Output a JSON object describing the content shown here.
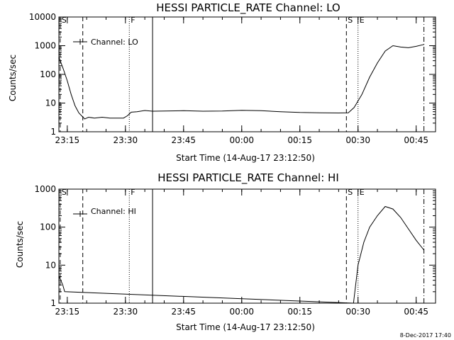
{
  "footer_stamp": "8-Dec-2017 17:40",
  "chart_data": [
    {
      "type": "line",
      "title": "HESSI PARTICLE_RATE Channel: LO",
      "xlabel": "Start Time (14-Aug-17 23:12:50)",
      "ylabel": "Counts/sec",
      "yscale": "log",
      "ylim": [
        1,
        10000
      ],
      "yticks": [
        1,
        10,
        100,
        1000,
        10000
      ],
      "ytick_labels": [
        "1",
        "10",
        "100",
        "1000",
        "10000"
      ],
      "xlim": [
        "23:12:50",
        "00:50:00"
      ],
      "xticks": [
        "23:15",
        "23:30",
        "23:45",
        "00:00",
        "00:15",
        "00:30",
        "00:45"
      ],
      "legend": {
        "label": "Channel: LO",
        "placement": "top-left"
      },
      "series": [
        {
          "name": "Channel: LO",
          "x": [
            "23:12:50",
            "23:14:00",
            "23:15:00",
            "23:16:00",
            "23:17:00",
            "23:18:00",
            "23:19:30",
            "23:20:30",
            "23:22:00",
            "23:24:00",
            "23:26:00",
            "23:28:00",
            "23:29:30",
            "23:30:30",
            "23:31:30",
            "23:33:00",
            "23:35:00",
            "23:37:00",
            "23:40:00",
            "23:45:00",
            "23:50:00",
            "23:55:00",
            "00:00:00",
            "00:05:00",
            "00:10:00",
            "00:15:00",
            "00:20:00",
            "00:25:00",
            "00:27:30",
            "00:29:00",
            "00:31:00",
            "00:33:00",
            "00:35:00",
            "00:37:00",
            "00:39:00",
            "00:41:00",
            "00:43:00",
            "00:45:00",
            "00:47:00"
          ],
          "y": [
            400,
            150,
            60,
            20,
            8,
            4.5,
            2.8,
            3.2,
            3.0,
            3.2,
            3.0,
            3.0,
            3.0,
            3.6,
            4.8,
            5.0,
            5.5,
            5.2,
            5.3,
            5.4,
            5.2,
            5.3,
            5.6,
            5.4,
            5.0,
            4.7,
            4.6,
            4.5,
            4.6,
            7,
            20,
            80,
            250,
            650,
            1000,
            900,
            850,
            950,
            1100
          ]
        }
      ],
      "markers": [
        {
          "label": "S",
          "time": "23:13:10",
          "style": "dashed"
        },
        {
          "label": "",
          "time": "23:19:00",
          "style": "dashed"
        },
        {
          "label": "F",
          "time": "23:31:00",
          "style": "dotted"
        },
        {
          "label": "",
          "time": "23:37:00",
          "style": "solid"
        },
        {
          "label": "S",
          "time": "00:27:00",
          "style": "dashed"
        },
        {
          "label": "E",
          "time": "00:30:00",
          "style": "dotted"
        },
        {
          "label": "",
          "time": "00:47:00",
          "style": "dashdot"
        }
      ]
    },
    {
      "type": "line",
      "title": "HESSI PARTICLE_RATE Channel: HI",
      "xlabel": "Start Time (14-Aug-17 23:12:50)",
      "ylabel": "Counts/sec",
      "yscale": "log",
      "ylim": [
        1,
        1000
      ],
      "yticks": [
        1,
        10,
        100,
        1000
      ],
      "ytick_labels": [
        "1",
        "10",
        "100",
        "1000"
      ],
      "xlim": [
        "23:12:50",
        "00:50:00"
      ],
      "xticks": [
        "23:15",
        "23:30",
        "23:45",
        "00:00",
        "00:15",
        "00:30",
        "00:45"
      ],
      "legend": {
        "label": "Channel: HI",
        "placement": "top-left"
      },
      "series": [
        {
          "name": "Channel: HI",
          "x": [
            "23:12:50",
            "23:13:20",
            "23:13:50",
            "23:14:20",
            "00:28:50",
            "00:30:00",
            "00:31:30",
            "00:33:00",
            "00:35:00",
            "00:37:00",
            "00:39:00",
            "00:41:00",
            "00:43:00",
            "00:45:00",
            "00:47:00"
          ],
          "y": [
            5,
            4,
            3,
            2,
            1,
            10,
            40,
            100,
            200,
            350,
            300,
            180,
            90,
            45,
            25
          ]
        }
      ],
      "markers": [
        {
          "label": "S",
          "time": "23:13:10",
          "style": "dashed"
        },
        {
          "label": "",
          "time": "23:19:00",
          "style": "dashed"
        },
        {
          "label": "F",
          "time": "23:31:00",
          "style": "dotted"
        },
        {
          "label": "",
          "time": "23:37:00",
          "style": "solid"
        },
        {
          "label": "S",
          "time": "00:27:00",
          "style": "dashed"
        },
        {
          "label": "E",
          "time": "00:30:00",
          "style": "dotted"
        },
        {
          "label": "",
          "time": "00:47:00",
          "style": "dashdot"
        }
      ]
    }
  ]
}
